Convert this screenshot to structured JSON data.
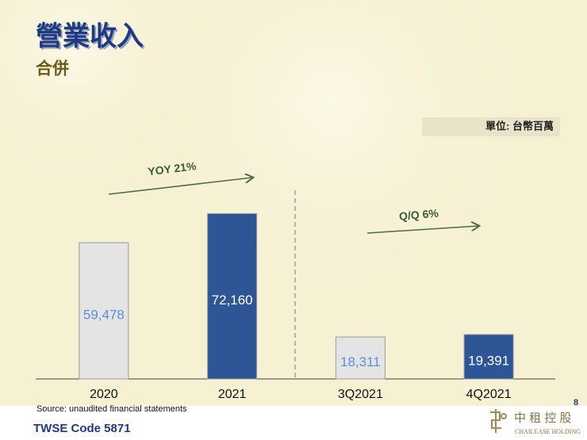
{
  "chart_data": {
    "type": "bar",
    "title": "營業收入",
    "subtitle": "合併",
    "unit_note": "單位: 台幣百萬",
    "categories": [
      "2020",
      "2021",
      "3Q2021",
      "4Q2021"
    ],
    "values": [
      59478,
      72160,
      18311,
      19391
    ],
    "value_labels": [
      "59,478",
      "72,160",
      "18,311",
      "19,391"
    ],
    "colors": [
      "#e4e4e4",
      "#2e5596",
      "#e4e4e4",
      "#2e5596"
    ],
    "value_label_colors": [
      "#5b8fd6",
      "#ffffff",
      "#5b8fd6",
      "#ffffff"
    ],
    "annotations": [
      "YOY 21%",
      "Q/Q 6%"
    ],
    "source": "Source: unaudited financial statements"
  },
  "footer": {
    "code": "TWSE Code 5871",
    "page": "8"
  },
  "logo": {
    "name": "中 租 控 股",
    "english": "CHAILEASE HOLDING"
  }
}
